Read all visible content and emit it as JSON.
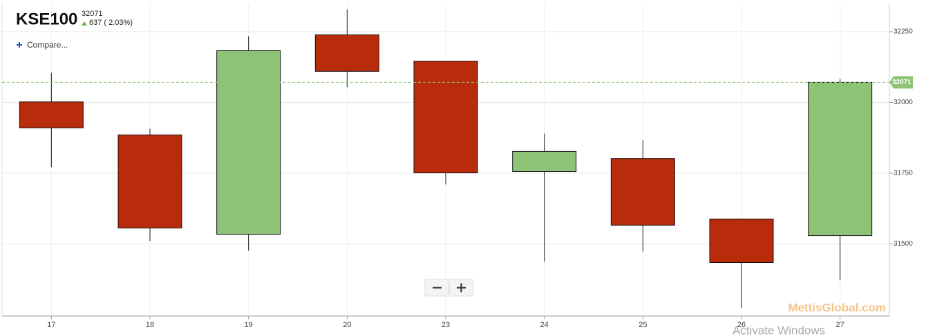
{
  "chart_data": {
    "type": "candlestick",
    "title": "KSE100",
    "last_price": 32071,
    "change": "637 ( 2.03%)",
    "compare": "Compare...",
    "watermark": "MettisGlobal.com",
    "overlay": "Activate Windows",
    "categories": [
      "17",
      "18",
      "19",
      "20",
      "23",
      "24",
      "25",
      "26",
      "27"
    ],
    "open": [
      32002,
      31885,
      31534,
      32239,
      32146,
      31756,
      31802,
      31588,
      31529
    ],
    "high": [
      32105,
      31907,
      32234,
      32329,
      32146,
      31890,
      31866,
      31590,
      32083
    ],
    "low": [
      31771,
      31510,
      31476,
      32054,
      31710,
      31437,
      31473,
      31273,
      31371
    ],
    "close": [
      31910,
      31556,
      32183,
      32110,
      31751,
      31827,
      31566,
      31434,
      32071
    ],
    "up_color": "#8dc377",
    "down_color": "#b82c0c",
    "ylim": [
      31245,
      32350
    ],
    "yticks": [
      31500,
      31750,
      32000,
      32250
    ],
    "grid": true
  }
}
